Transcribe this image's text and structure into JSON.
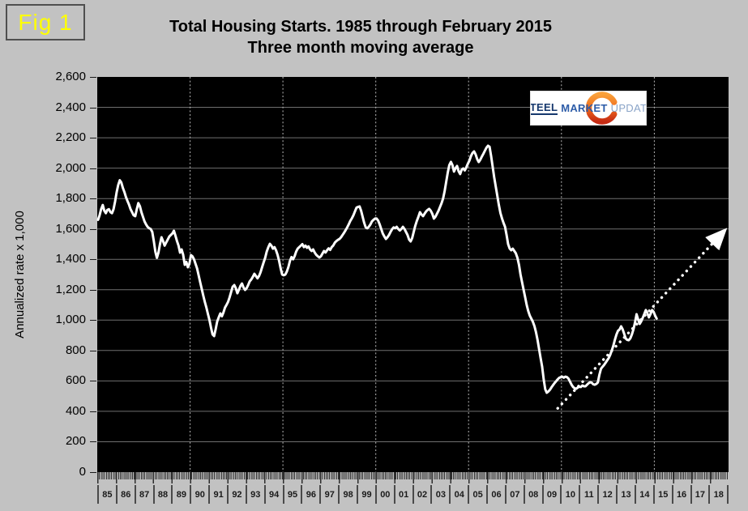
{
  "fig_label": "Fig 1",
  "page_bg": "#c2c2c2",
  "logo": {
    "word1": "STEEL",
    "word2": "MARKET",
    "word3": "UPDATE",
    "colors": {
      "word1": "#16386d",
      "word2": "#2d5ca8",
      "word3": "#8aa4c8",
      "crescent_top": "#f9a03a",
      "crescent_bottom": "#c52b14"
    }
  },
  "chart_data": {
    "type": "line",
    "title": "Total Housing Starts. 1985 through February 2015",
    "subtitle": "Three month moving average",
    "ylabel": "Annualized rate x 1,000",
    "ylim": [
      0,
      2600
    ],
    "y_tick_step": 200,
    "y_tick_labels": [
      "0",
      "200",
      "400",
      "600",
      "800",
      "1,000",
      "1,200",
      "1,400",
      "1,600",
      "1,800",
      "2,000",
      "2,200",
      "2,400",
      "2,600"
    ],
    "x_tick_labels": [
      "85",
      "86",
      "87",
      "88",
      "89",
      "90",
      "91",
      "92",
      "93",
      "94",
      "95",
      "96",
      "97",
      "98",
      "99",
      "00",
      "01",
      "02",
      "03",
      "04",
      "05",
      "06",
      "07",
      "08",
      "09",
      "10",
      "11",
      "12",
      "13",
      "14",
      "15",
      "16",
      "17",
      "18"
    ],
    "v_gridlines_at": [
      "90",
      "95",
      "00",
      "05",
      "10",
      "15"
    ],
    "plot_bg": "#000000",
    "h_gridline_color": "#6f6f6f",
    "v_gridline_color": "#b8b8b8",
    "series": [
      {
        "name": "Total housing starts, 3-month moving average (annualized rate x 1,000)",
        "color": "#ffffff",
        "start": "1985-01",
        "frequency": "monthly",
        "values": [
          1660,
          1690,
          1730,
          1757,
          1720,
          1704,
          1725,
          1730,
          1710,
          1704,
          1730,
          1780,
          1840,
          1890,
          1920,
          1905,
          1870,
          1843,
          1810,
          1784,
          1760,
          1730,
          1710,
          1690,
          1684,
          1730,
          1770,
          1750,
          1710,
          1680,
          1650,
          1630,
          1614,
          1605,
          1600,
          1580,
          1520,
          1450,
          1410,
          1444,
          1500,
          1545,
          1520,
          1490,
          1510,
          1530,
          1550,
          1560,
          1570,
          1588,
          1555,
          1520,
          1490,
          1444,
          1465,
          1430,
          1364,
          1383,
          1348,
          1370,
          1428,
          1420,
          1400,
          1370,
          1340,
          1295,
          1250,
          1204,
          1160,
          1119,
          1082,
          1040,
          1000,
          950,
          906,
          895,
          940,
          991,
          1020,
          1044,
          1025,
          1050,
          1082,
          1100,
          1120,
          1150,
          1185,
          1220,
          1231,
          1210,
          1177,
          1200,
          1225,
          1241,
          1215,
          1199,
          1210,
          1230,
          1255,
          1268,
          1285,
          1305,
          1290,
          1275,
          1290,
          1315,
          1348,
          1380,
          1410,
          1450,
          1480,
          1502,
          1490,
          1470,
          1480,
          1460,
          1430,
          1390,
          1340,
          1300,
          1295,
          1300,
          1320,
          1350,
          1390,
          1415,
          1400,
          1420,
          1450,
          1470,
          1480,
          1490,
          1500,
          1480,
          1490,
          1476,
          1485,
          1465,
          1455,
          1465,
          1445,
          1430,
          1420,
          1412,
          1420,
          1438,
          1455,
          1445,
          1460,
          1472,
          1462,
          1480,
          1491,
          1510,
          1520,
          1528,
          1534,
          1545,
          1560,
          1575,
          1592,
          1610,
          1630,
          1652,
          1670,
          1690,
          1715,
          1740,
          1745,
          1748,
          1720,
          1680,
          1640,
          1610,
          1604,
          1615,
          1630,
          1650,
          1660,
          1668,
          1668,
          1655,
          1630,
          1600,
          1570,
          1550,
          1534,
          1545,
          1560,
          1580,
          1598,
          1610,
          1605,
          1614,
          1600,
          1590,
          1600,
          1614,
          1600,
          1580,
          1560,
          1530,
          1518,
          1540,
          1580,
          1620,
          1652,
          1680,
          1710,
          1695,
          1684,
          1700,
          1715,
          1725,
          1732,
          1720,
          1700,
          1668,
          1680,
          1700,
          1720,
          1745,
          1770,
          1801,
          1850,
          1910,
          1970,
          2020,
          2041,
          2020,
          1977,
          2000,
          2014,
          1980,
          1961,
          1990,
          1998,
          1985,
          2005,
          2030,
          2050,
          2080,
          2100,
          2110,
          2090,
          2060,
          2040,
          2055,
          2075,
          2095,
          2115,
          2135,
          2147,
          2140,
          2080,
          2010,
          1940,
          1880,
          1820,
          1760,
          1705,
          1670,
          1640,
          1614,
          1560,
          1500,
          1471,
          1460,
          1470,
          1455,
          1440,
          1410,
          1364,
          1300,
          1250,
          1200,
          1151,
          1100,
          1060,
          1030,
          1010,
          990,
          960,
          920,
          870,
          810,
          750,
          693,
          610,
          545,
          522,
          530,
          542,
          558,
          572,
          586,
          598,
          610,
          620,
          625,
          628,
          622,
          628,
          625,
          615,
          595,
          575,
          560,
          552,
          549,
          556,
          562,
          560,
          570,
          565,
          565,
          575,
          585,
          591,
          588,
          578,
          575,
          580,
          590,
          640,
          680,
          693,
          705,
          720,
          735,
          750,
          772,
          800,
          831,
          870,
          905,
          930,
          938,
          959,
          940,
          910,
          879,
          870,
          868,
          880,
          905,
          940,
          985,
          1039,
          1005,
          975,
          992,
          1015,
          1040,
          1066,
          1045,
          1018,
          1040,
          1066,
          1055,
          1030,
          1010
        ]
      }
    ],
    "trend_line": {
      "style": "dotted",
      "color": "#ffffff",
      "arrow": true,
      "from": {
        "year": 2009.8,
        "value": 420
      },
      "to": {
        "year": 2019.0,
        "value": 1610
      }
    }
  }
}
